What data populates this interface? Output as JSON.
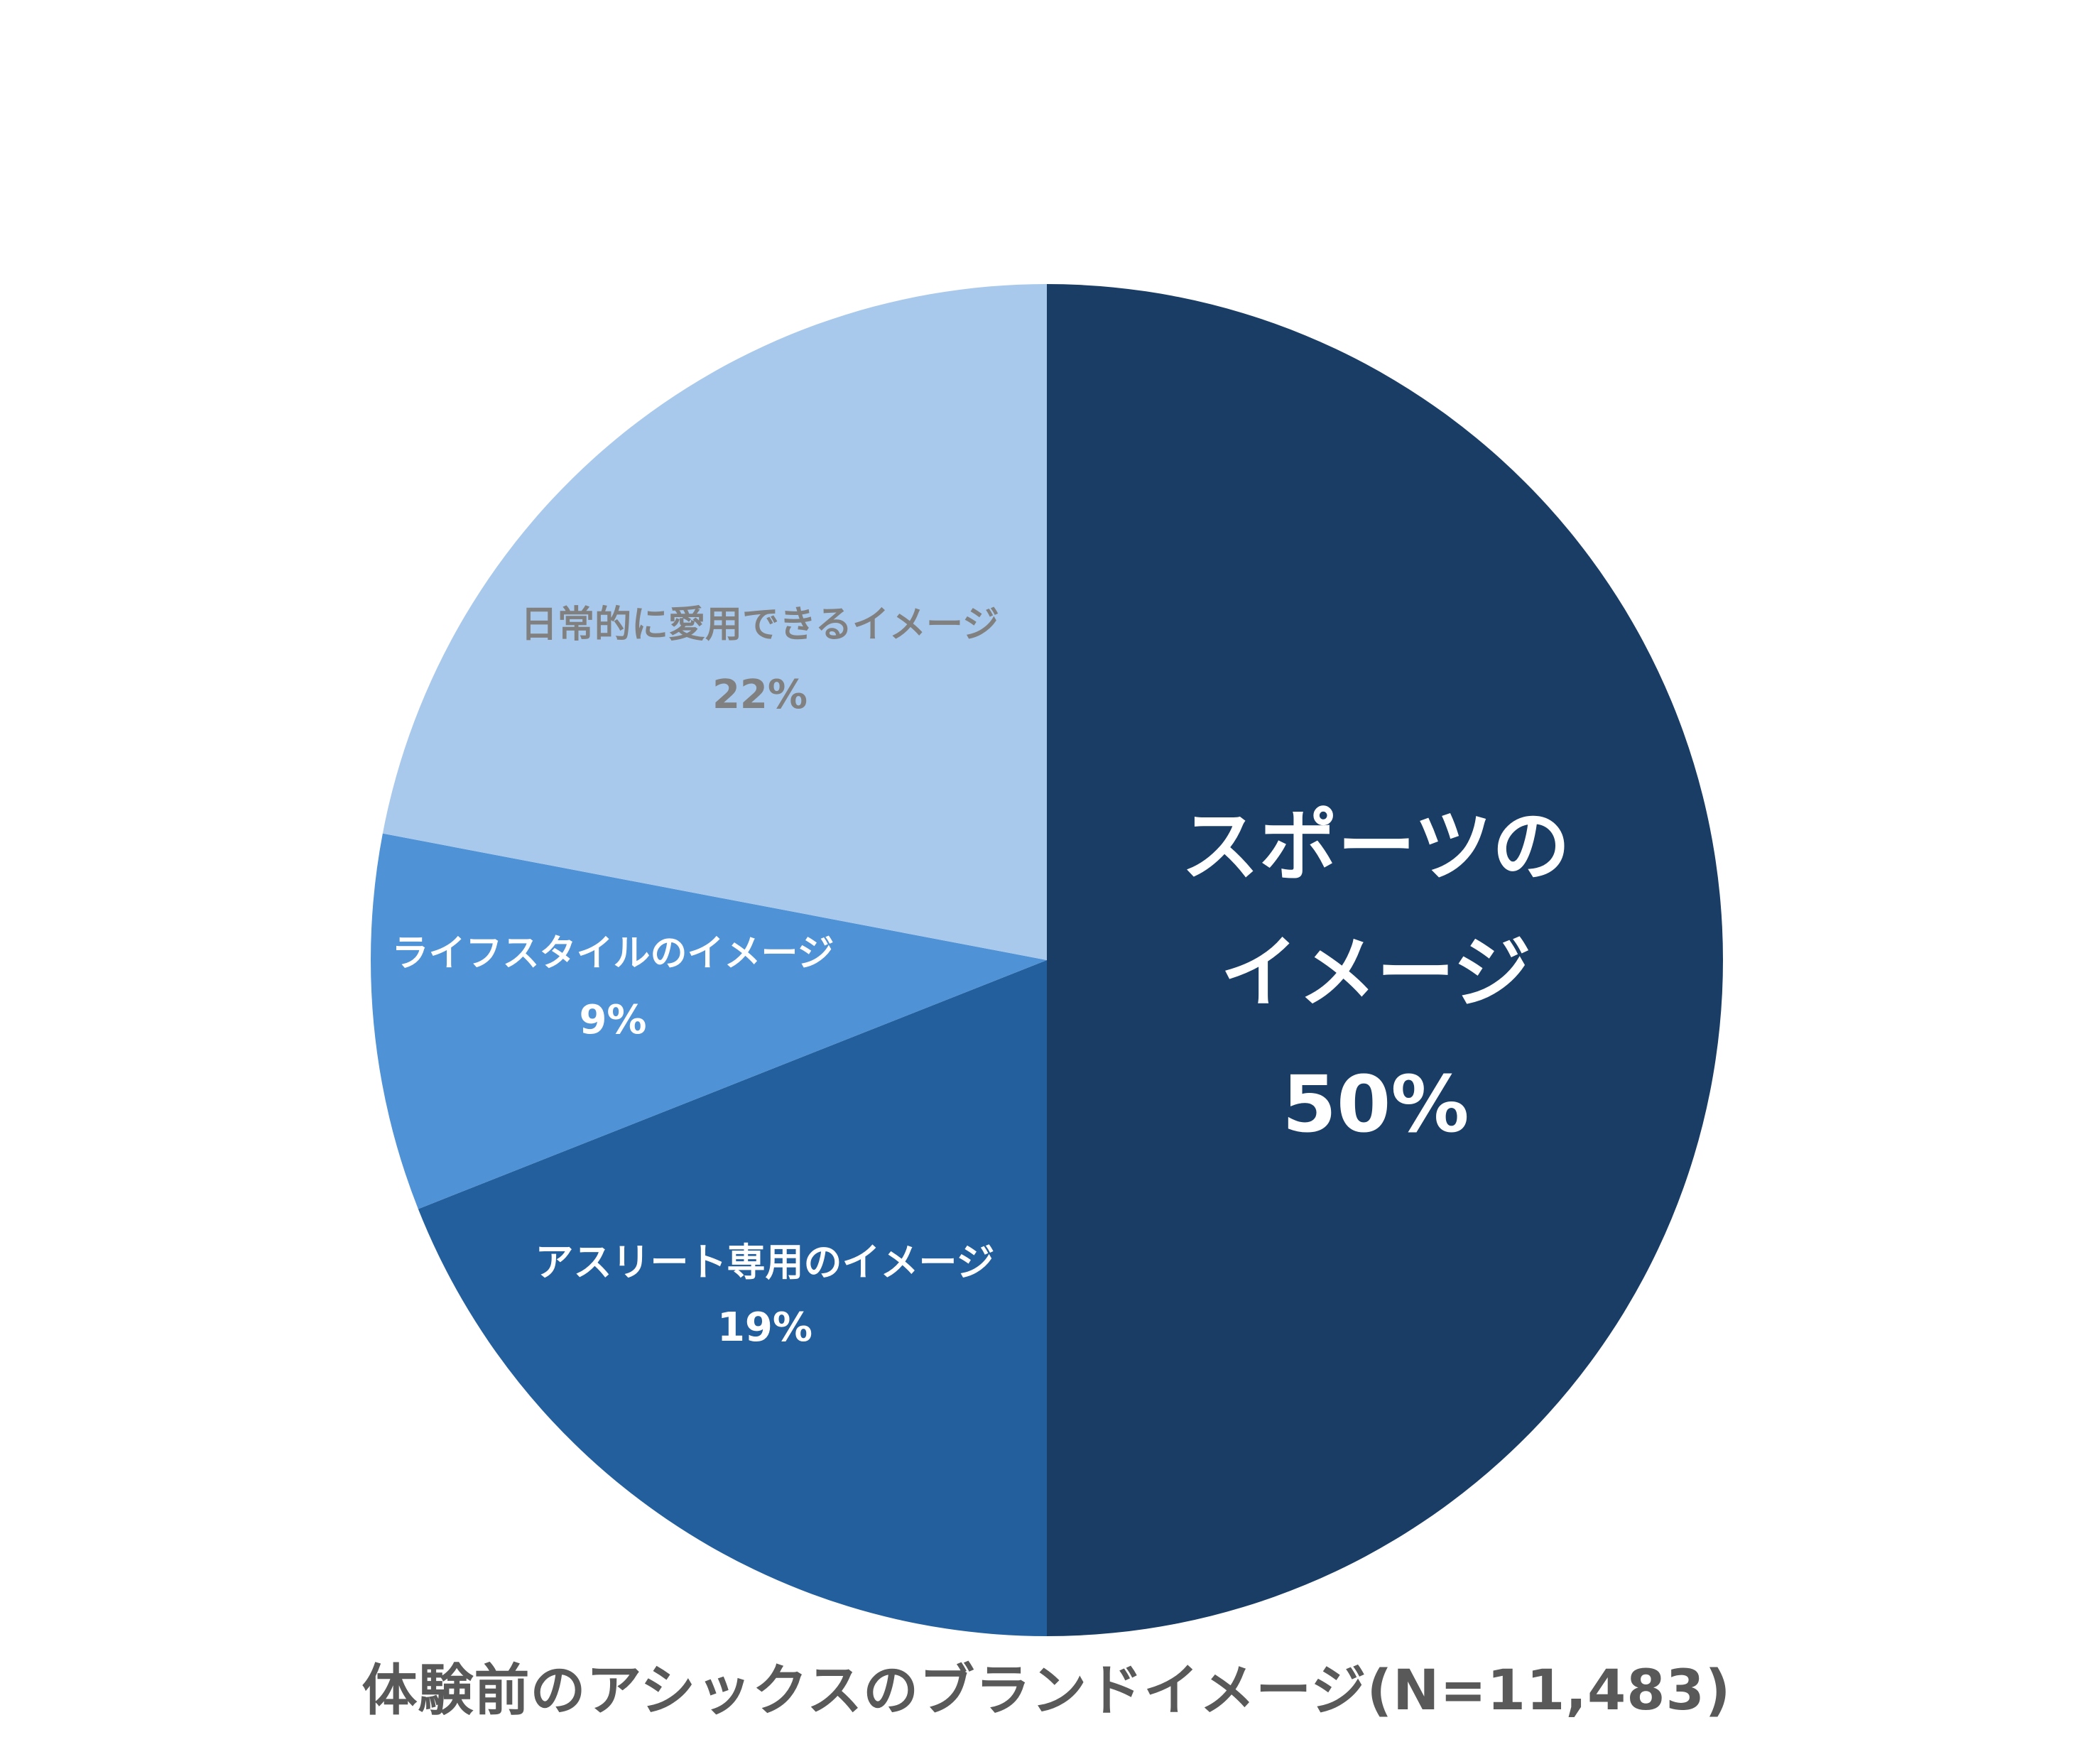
{
  "chart_data": {
    "type": "pie",
    "title": "体験前のアシックスのブランドイメージ(N=11,483)",
    "start": "top",
    "direction": "clockwise",
    "slices": [
      {
        "label_lines": [
          "スポーツの",
          "イメージ"
        ],
        "value": 50,
        "value_text": "50%",
        "color": "#1a3d66",
        "text_color": "#ffffff"
      },
      {
        "label_lines": [
          "アスリート専用のイメージ"
        ],
        "value": 19,
        "value_text": "19%",
        "color": "#225f9c",
        "text_color": "#ffffff"
      },
      {
        "label_lines": [
          "ライフスタイルのイメージ"
        ],
        "value": 9,
        "value_text": "9%",
        "color": "#4f92d6",
        "text_color": "#ffffff"
      },
      {
        "label_lines": [
          "日常的に愛用できるイメージ"
        ],
        "value": 22,
        "value_text": "22%",
        "color": "#a8c9eb",
        "text_color": "#808080"
      }
    ]
  }
}
